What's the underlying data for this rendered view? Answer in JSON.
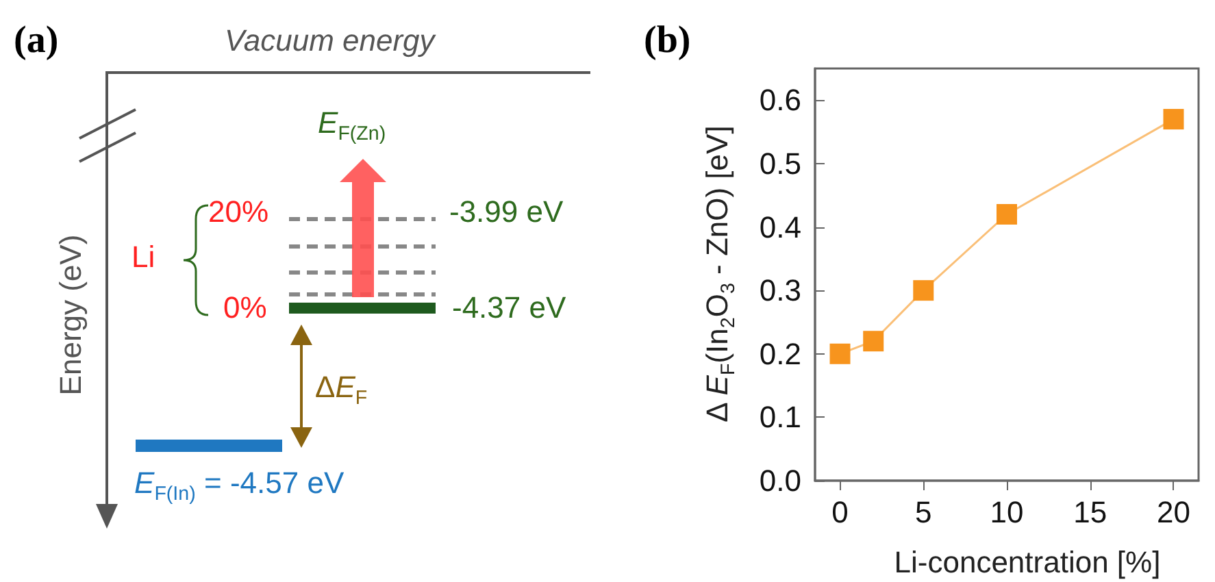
{
  "chart_data": [
    {
      "type": "other",
      "title": "(a)",
      "ylabel": "Energy (eV)",
      "annotations": [
        "Vacuum energy",
        "E$_{F(Zn)}$",
        "Li",
        "20%",
        "0%",
        "-3.99 eV",
        "-4.37 eV",
        "ΔE$_{F}$",
        "E$_{F(In)}$ = -4.57 eV"
      ]
    },
    {
      "type": "line",
      "title": "(b)",
      "xlabel": "Li-concentration [%]",
      "ylabel": "Δ E$_{F}$(In$_{2}$O$_{3}$ - ZnO) [eV]",
      "x": [
        0,
        2,
        5,
        10,
        20
      ],
      "series": [
        {
          "color": "#f7941d",
          "values": [
            0.2,
            0.22,
            0.3,
            0.42,
            0.57
          ]
        }
      ],
      "xlim": [
        -1.5,
        21.5
      ],
      "xticks": [
        0,
        5,
        10,
        15,
        20
      ],
      "ylim": [
        0,
        0.65
      ],
      "yticks": [
        {
          "value": 0,
          "label": "0.0"
        },
        {
          "value": 0.1,
          "label": "0.1"
        },
        {
          "value": 0.2,
          "label": "0.2"
        },
        {
          "value": 0.3,
          "label": "0.3"
        },
        {
          "value": 0.4,
          "label": "0.4"
        },
        {
          "value": 0.5,
          "label": "0.5"
        },
        {
          "value": 0.6,
          "label": "0.6"
        }
      ],
      "marker": "square",
      "line_style": "solid"
    }
  ]
}
